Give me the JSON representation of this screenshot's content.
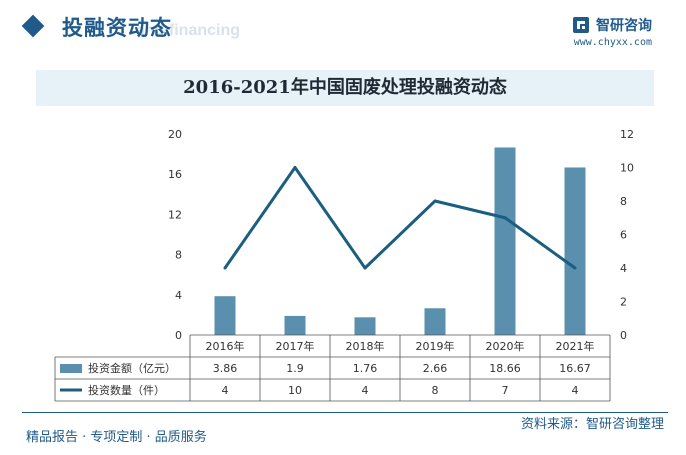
{
  "header": {
    "title": "投融资动态",
    "bg_subtitle": "and financing",
    "brand_name": "智研咨询",
    "brand_url": "www.chyxx.com"
  },
  "colors": {
    "brand": "#1f5a8a",
    "bar": "#5a8fae",
    "line": "#1b5e80",
    "title_band": "#e6f1f8"
  },
  "chart_data": {
    "type": "bar+line",
    "title": "2016-2021年中国固废处理投融资动态",
    "categories": [
      "2016年",
      "2017年",
      "2018年",
      "2019年",
      "2020年",
      "2021年"
    ],
    "series": [
      {
        "name": "投资金额（亿元）",
        "type": "bar",
        "axis": "left",
        "values": [
          3.86,
          1.9,
          1.76,
          2.66,
          18.66,
          16.67
        ],
        "labels": [
          "3.86",
          "1.9",
          "1.76",
          "2.66",
          "18.66",
          "16.67"
        ]
      },
      {
        "name": "投资数量（件）",
        "type": "line",
        "axis": "right",
        "values": [
          4,
          10,
          4,
          8,
          7,
          4
        ],
        "labels": [
          "4",
          "10",
          "4",
          "8",
          "7",
          "4"
        ]
      }
    ],
    "y_left": {
      "min": 0,
      "max": 20,
      "ticks": [
        "0",
        "4",
        "8",
        "12",
        "16",
        "20"
      ]
    },
    "y_right": {
      "min": 0,
      "max": 12,
      "ticks": [
        "0",
        "2",
        "4",
        "6",
        "8",
        "10",
        "12"
      ]
    },
    "grid": false,
    "legend": "data-table-left"
  },
  "footer": {
    "left": "精品报告 · 专项定制 · 品质服务",
    "source": "资料来源：智研咨询整理"
  }
}
